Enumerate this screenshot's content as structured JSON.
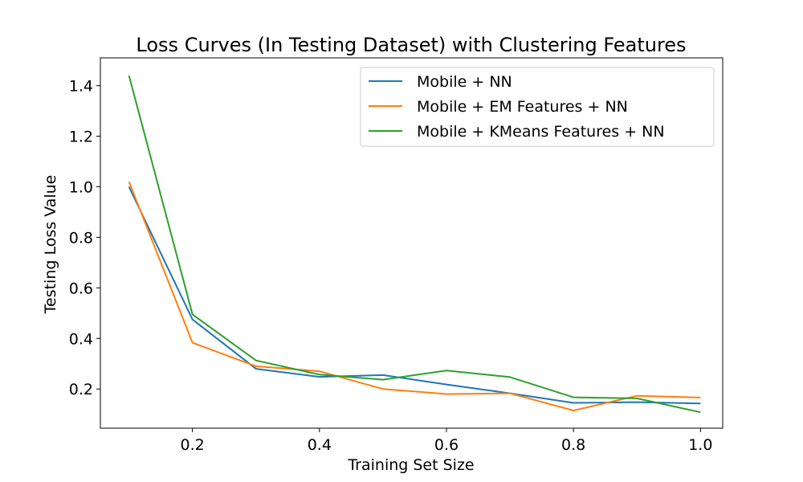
{
  "chart_data": {
    "type": "line",
    "title": "Loss Curves (In Testing Dataset) with Clustering Features",
    "xlabel": "Training Set Size",
    "ylabel": "Testing Loss Value",
    "xlim": [
      0.055,
      1.035
    ],
    "ylim": [
      0.045,
      1.51
    ],
    "xticks": [
      "0.2",
      "0.4",
      "0.6",
      "0.8",
      "1.0"
    ],
    "yticks": [
      "0.2",
      "0.4",
      "0.6",
      "0.8",
      "1.0",
      "1.2",
      "1.4"
    ],
    "grid": false,
    "legend_position": "top-right",
    "x": [
      0.1,
      0.2,
      0.3,
      0.4,
      0.5,
      0.6,
      0.7,
      0.8,
      0.9,
      1.0
    ],
    "series": [
      {
        "name": "Mobile + NN",
        "color": "#1f77b4",
        "values": [
          1.0,
          0.475,
          0.28,
          0.248,
          0.255,
          0.218,
          0.183,
          0.145,
          0.148,
          0.143
        ]
      },
      {
        "name": "Mobile + EM Features + NN",
        "color": "#ff7f0e",
        "values": [
          1.02,
          0.383,
          0.29,
          0.27,
          0.2,
          0.18,
          0.183,
          0.115,
          0.173,
          0.166
        ]
      },
      {
        "name": "Mobile + KMeans Features + NN",
        "color": "#2ca02c",
        "values": [
          1.44,
          0.495,
          0.313,
          0.257,
          0.237,
          0.273,
          0.247,
          0.167,
          0.163,
          0.108
        ]
      }
    ]
  }
}
